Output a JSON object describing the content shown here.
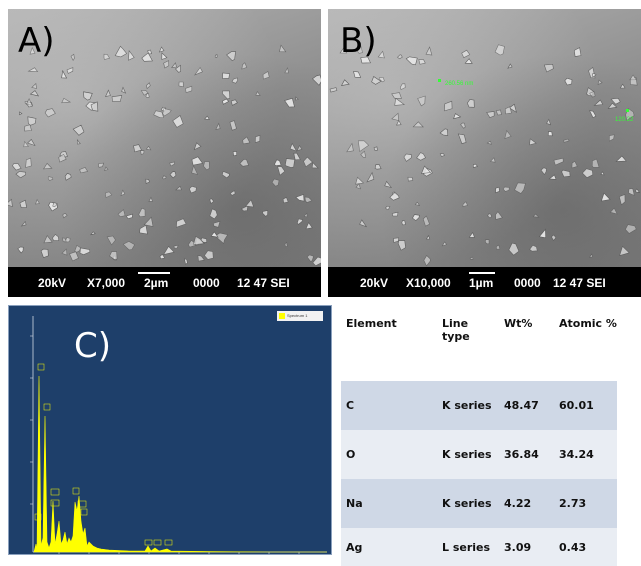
{
  "panel_a": {
    "label": "A)",
    "scalebar": {
      "voltage": "20kV",
      "magnification": "X7,000",
      "scale": "2µm",
      "code": "0000",
      "id": "12 47 SEI"
    }
  },
  "panel_b": {
    "label": "B)",
    "measurements": [
      "260.56 nm",
      "120.22"
    ],
    "scalebar": {
      "voltage": "20kV",
      "magnification": "X10,000",
      "scale": "1µm",
      "code": "0000",
      "id": "12 47 SEI"
    }
  },
  "panel_c": {
    "label": "C)",
    "legend": "Spectrum 1",
    "colors": {
      "background": "#1e3f6a",
      "spectrum": "#ffff00"
    }
  },
  "table": {
    "headers": [
      "Element",
      "Line type",
      "Wt%",
      "Atomic %"
    ],
    "rows": [
      {
        "element": "C",
        "line_type": "K series",
        "wt": "48.47",
        "atomic": "60.01"
      },
      {
        "element": "O",
        "line_type": "K series",
        "wt": "36.84",
        "atomic": "34.24"
      },
      {
        "element": "Na",
        "line_type": "K series",
        "wt": "4.22",
        "atomic": "2.73"
      },
      {
        "element": "Ag",
        "line_type": "L series",
        "wt": "3.09",
        "atomic": "0.43"
      }
    ]
  }
}
